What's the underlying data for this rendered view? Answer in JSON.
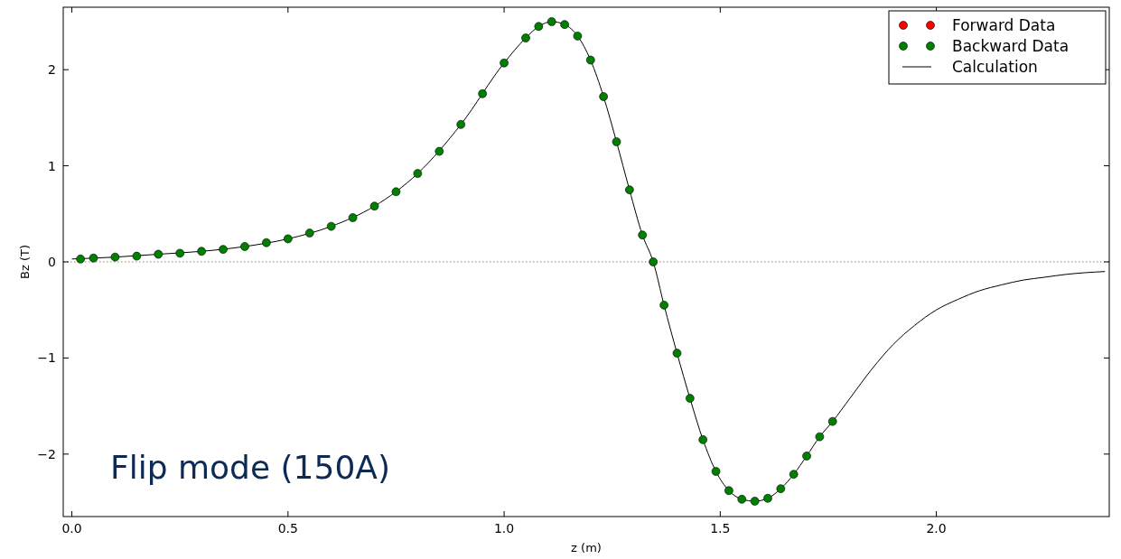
{
  "chart_data": {
    "type": "scatter",
    "xlabel": "z (m)",
    "ylabel": "Bz (T)",
    "xlim": [
      -0.02,
      2.4
    ],
    "ylim": [
      -2.65,
      2.65
    ],
    "xticks": [
      {
        "value": 0,
        "label": "0.0"
      },
      {
        "value": 0.5,
        "label": "0.5"
      },
      {
        "value": 1,
        "label": "1.0"
      },
      {
        "value": 1.5,
        "label": "1.5"
      },
      {
        "value": 2,
        "label": "2.0"
      }
    ],
    "yticks": [
      {
        "value": -2,
        "label": "−2"
      },
      {
        "value": -1,
        "label": "−1"
      },
      0,
      1,
      2
    ],
    "grid": false,
    "legend": "top right",
    "marker": "circle",
    "ref_lines": [
      {
        "axis": "y",
        "value": 0,
        "color": "#8a8a6a",
        "line_style": "dotted"
      }
    ],
    "annotations": [
      "Flip mode (150A)"
    ],
    "series": [
      {
        "name": "Forward Data",
        "color": "#ff0000"
      },
      {
        "name": "Backward Data",
        "color": "#007f00",
        "x": [
          0.02,
          0.05,
          0.1,
          0.15,
          0.2,
          0.25,
          0.3,
          0.35,
          0.4,
          0.45,
          0.5,
          0.55,
          0.6,
          0.65,
          0.7,
          0.75,
          0.8,
          0.85,
          0.9,
          0.95,
          1.0,
          1.05,
          1.08,
          1.11,
          1.14,
          1.17,
          1.2,
          1.23,
          1.26,
          1.29,
          1.32,
          1.345,
          1.37,
          1.4,
          1.43,
          1.46,
          1.49,
          1.52,
          1.55,
          1.58,
          1.61,
          1.64,
          1.67,
          1.7,
          1.73,
          1.76
        ],
        "values": [
          0.03,
          0.04,
          0.05,
          0.06,
          0.08,
          0.09,
          0.11,
          0.13,
          0.16,
          0.2,
          0.24,
          0.3,
          0.37,
          0.46,
          0.58,
          0.73,
          0.92,
          1.15,
          1.43,
          1.75,
          2.07,
          2.33,
          2.45,
          2.5,
          2.47,
          2.35,
          2.1,
          1.72,
          1.25,
          0.75,
          0.28,
          0.0,
          -0.45,
          -0.95,
          -1.42,
          -1.85,
          -2.18,
          -2.38,
          -2.47,
          -2.49,
          -2.46,
          -2.36,
          -2.21,
          -2.02,
          -1.82,
          -1.66
        ]
      },
      {
        "name": "Calculation",
        "type": "line",
        "color": "#000000",
        "marker": "none",
        "line_style": "solid",
        "x": [
          0.0,
          0.1,
          0.2,
          0.3,
          0.4,
          0.5,
          0.6,
          0.7,
          0.8,
          0.9,
          1.0,
          1.05,
          1.08,
          1.11,
          1.14,
          1.17,
          1.2,
          1.23,
          1.26,
          1.29,
          1.32,
          1.345,
          1.37,
          1.4,
          1.43,
          1.46,
          1.49,
          1.52,
          1.55,
          1.58,
          1.61,
          1.64,
          1.67,
          1.7,
          1.73,
          1.76,
          1.8,
          1.85,
          1.9,
          1.95,
          2.0,
          2.05,
          2.1,
          2.15,
          2.2,
          2.25,
          2.3,
          2.39
        ],
        "values": [
          0.03,
          0.05,
          0.08,
          0.11,
          0.16,
          0.24,
          0.37,
          0.58,
          0.92,
          1.43,
          2.07,
          2.33,
          2.45,
          2.5,
          2.47,
          2.35,
          2.1,
          1.72,
          1.25,
          0.75,
          0.28,
          0.0,
          -0.45,
          -0.95,
          -1.42,
          -1.85,
          -2.18,
          -2.38,
          -2.47,
          -2.49,
          -2.46,
          -2.36,
          -2.21,
          -2.02,
          -1.82,
          -1.66,
          -1.42,
          -1.12,
          -0.86,
          -0.66,
          -0.5,
          -0.39,
          -0.3,
          -0.24,
          -0.19,
          -0.16,
          -0.13,
          -0.1
        ]
      }
    ]
  }
}
